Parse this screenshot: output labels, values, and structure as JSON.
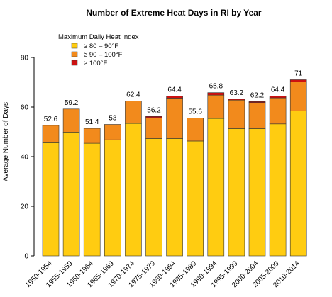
{
  "chart_data": {
    "type": "bar",
    "stacked": true,
    "title": "Number of Extreme Heat Days in RI by Year",
    "xlabel": "",
    "ylabel": "Average Number of Days",
    "ylim": [
      0,
      80
    ],
    "yticks": [
      0,
      20,
      40,
      60,
      80
    ],
    "grid": false,
    "legend": {
      "title": "Maximum Daily Heat Index",
      "placement": "top-left"
    },
    "categories": [
      "1950-1954",
      "1955-1959",
      "1960-1964",
      "1965-1969",
      "1970-1974",
      "1975-1979",
      "1980-1984",
      "1985-1989",
      "1990-1994",
      "1995-1999",
      "2000-2004",
      "2005-2009",
      "2010-2014"
    ],
    "series": [
      {
        "name": "≥ 80 – 90°F",
        "color": "#FFCC11",
        "values": [
          45.6,
          49.9,
          45.4,
          46.8,
          53.4,
          47.3,
          47.3,
          46.3,
          55.4,
          51.3,
          51.3,
          53.2,
          58.4
        ]
      },
      {
        "name": "≥ 90 – 100°F",
        "color": "#F28A1C",
        "values": [
          7.0,
          9.3,
          6.0,
          6.2,
          9.0,
          8.4,
          16.3,
          9.3,
          9.4,
          11.5,
          10.5,
          10.5,
          11.8
        ]
      },
      {
        "name": "≥ 100°F",
        "color": "#CC1111",
        "values": [
          0.0,
          0.0,
          0.0,
          0.0,
          0.0,
          0.5,
          0.8,
          0.0,
          1.0,
          0.4,
          0.4,
          0.7,
          0.8
        ]
      }
    ],
    "data_labels": [
      "52.6",
      "59.2",
      "51.4",
      "53",
      "62.4",
      "56.2",
      "64.4",
      "55.6",
      "65.8",
      "63.2",
      "62.2",
      "64.4",
      "71"
    ],
    "totals": [
      52.6,
      59.2,
      51.4,
      53,
      62.4,
      56.2,
      64.4,
      55.6,
      65.8,
      63.2,
      62.2,
      64.4,
      71
    ]
  }
}
